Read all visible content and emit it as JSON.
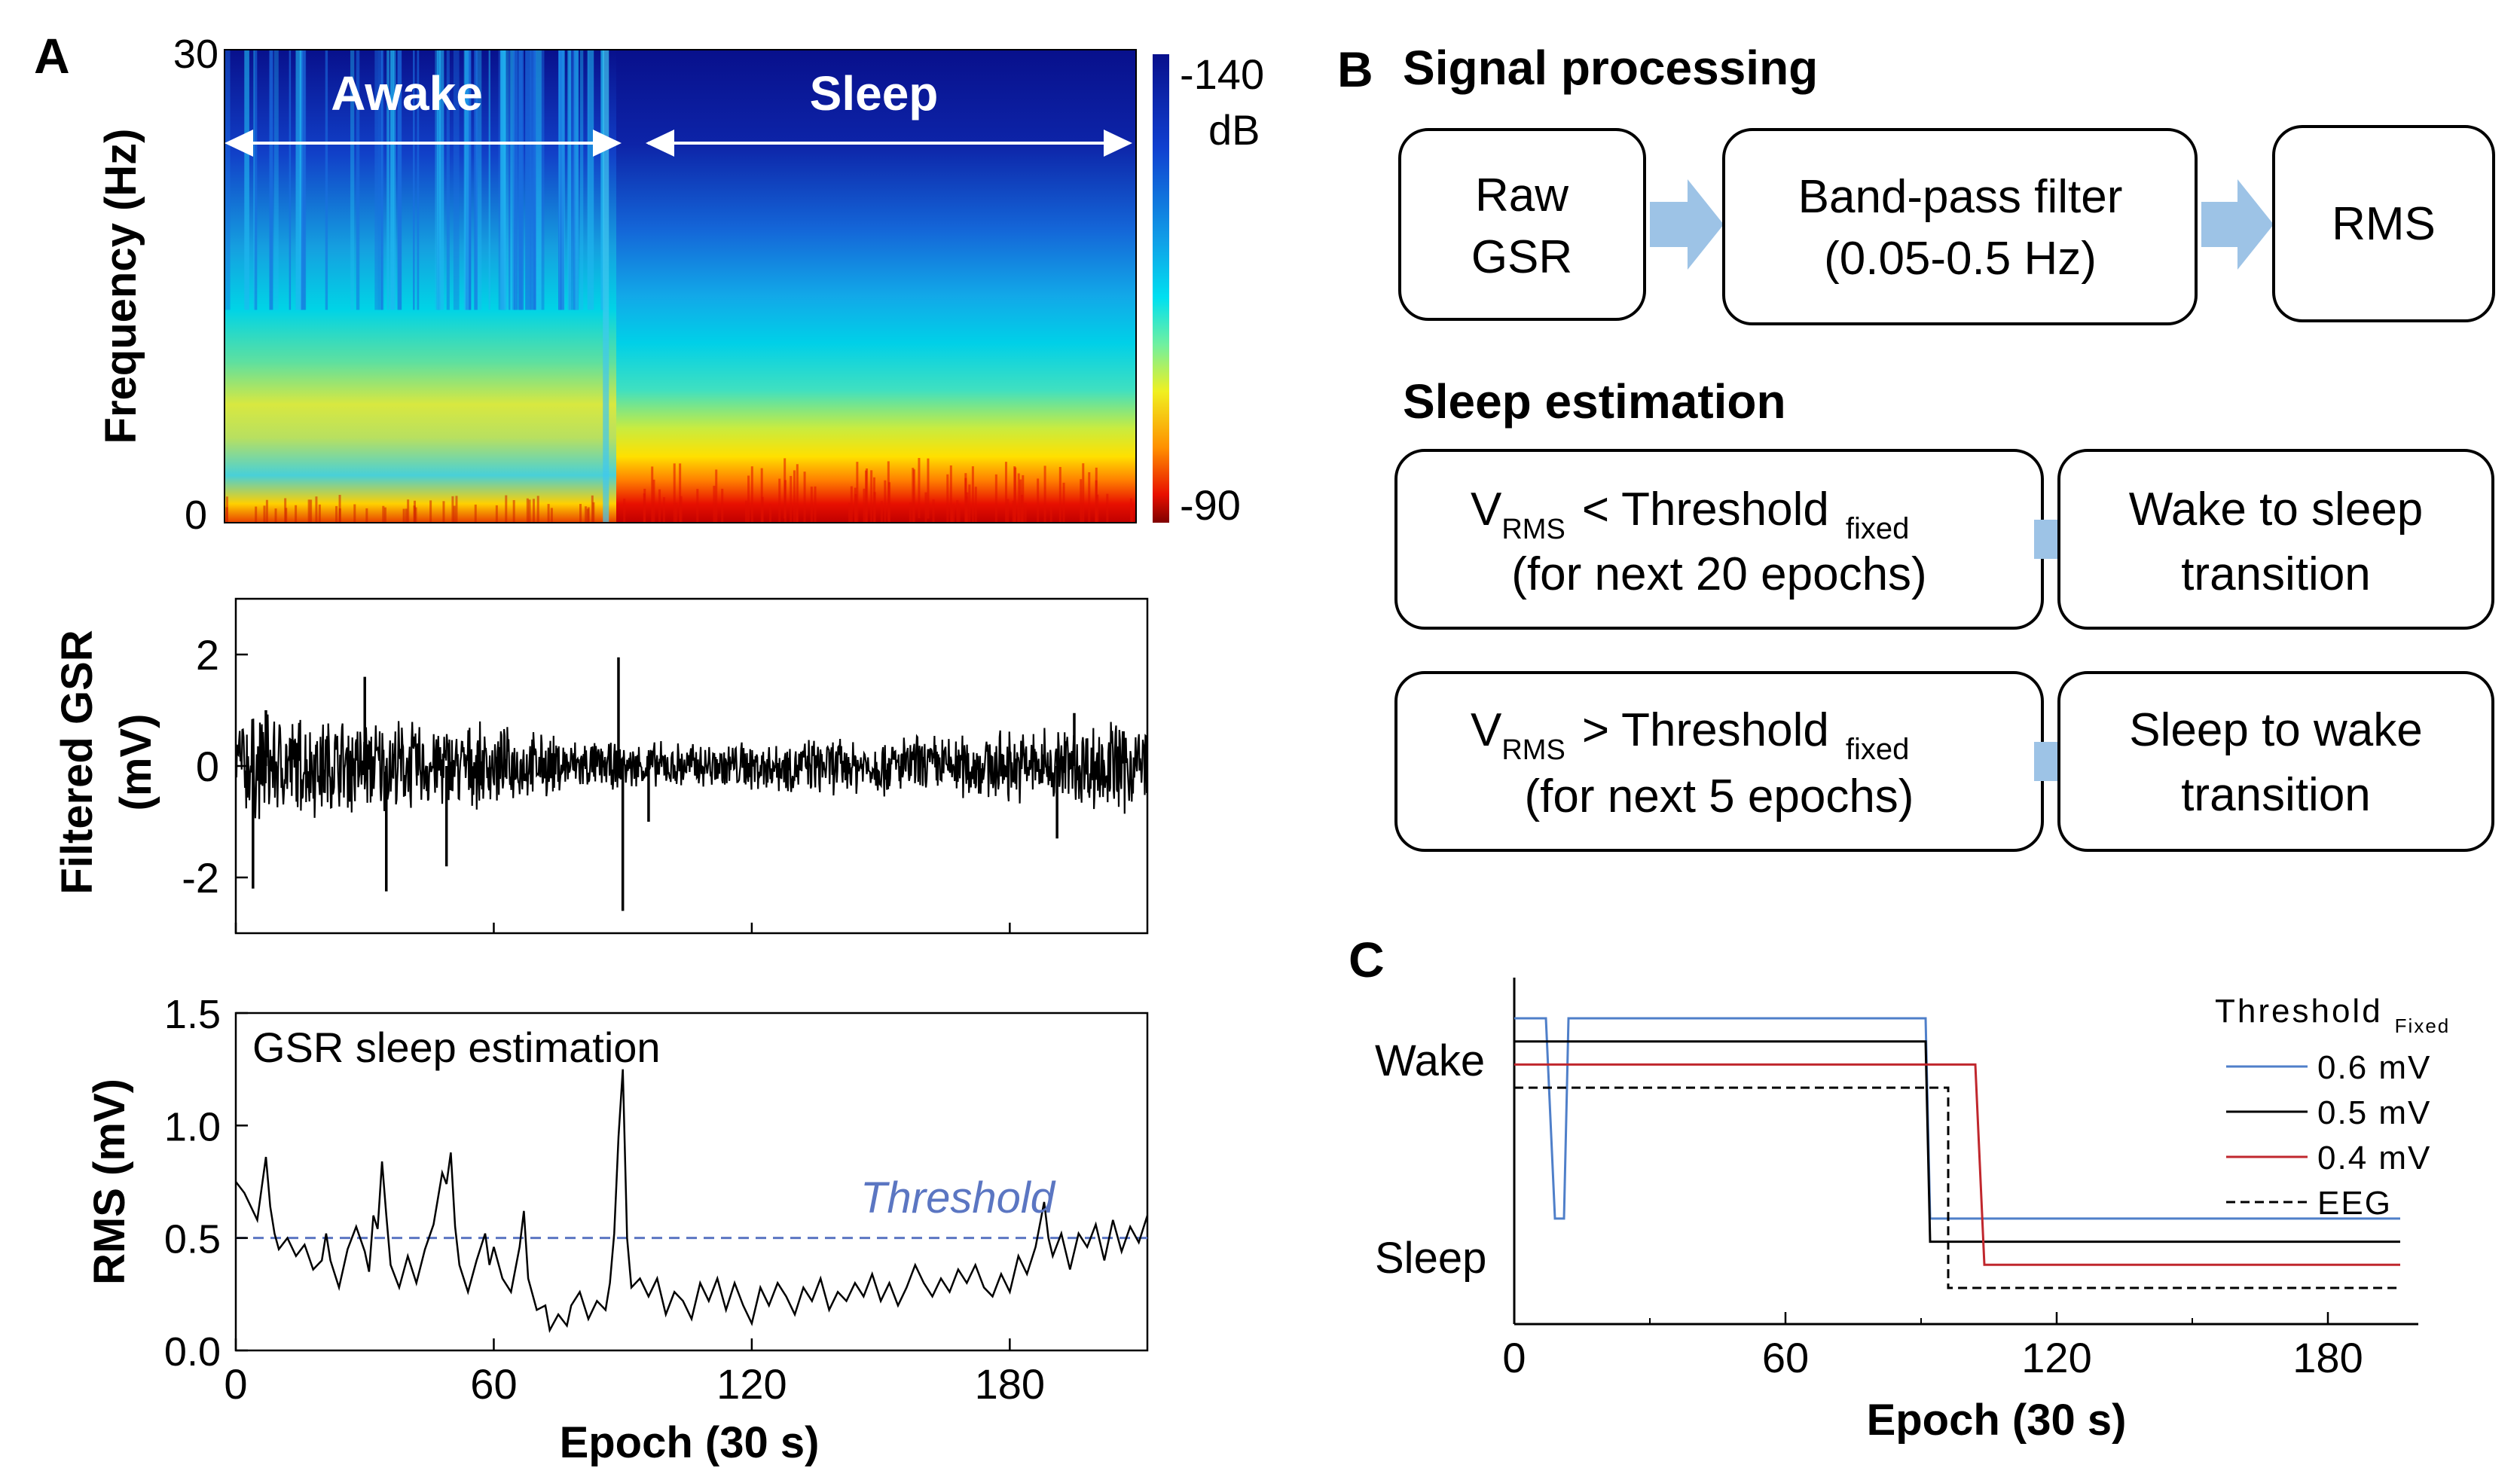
{
  "panel_labels": {
    "a": "A",
    "b": "B",
    "c": "C"
  },
  "chart_data": [
    {
      "type": "heatmap",
      "id": "spectrogram",
      "ylabel": "Frequency (Hz)",
      "y_tick_labels": [
        "30",
        "0"
      ],
      "ylim": [
        0,
        30
      ],
      "xlim": [
        0,
        212
      ],
      "regions": [
        {
          "label": "Awake",
          "x_range": [
            0,
            88
          ]
        },
        {
          "label": "Sleep",
          "x_range": [
            88,
            212
          ]
        }
      ],
      "colorbar": {
        "max_label": "-140",
        "unit": "dB",
        "min_label": "-90"
      },
      "colors": {
        "low": "#08108c",
        "mid": "#00d4e6",
        "high": "#ffe600",
        "peak": "#c80000"
      }
    },
    {
      "type": "line",
      "id": "filtered-gsr",
      "ylabel": "Filtered GSR (mV)",
      "ylabel_lines": [
        "Filtered GSR",
        "(mV)"
      ],
      "ylim": [
        -3,
        3
      ],
      "xlim": [
        0,
        212
      ],
      "y_tick_labels": [
        "2",
        "0",
        "-2"
      ],
      "y_ticks": [
        2,
        0,
        -2
      ],
      "x_ticks": [
        0,
        60,
        120,
        180
      ],
      "envelope": [
        {
          "x": 0,
          "amp": 0.85
        },
        {
          "x": 30,
          "amp": 0.75
        },
        {
          "x": 60,
          "amp": 0.6
        },
        {
          "x": 88,
          "amp": 0.35
        },
        {
          "x": 120,
          "amp": 0.4
        },
        {
          "x": 150,
          "amp": 0.45
        },
        {
          "x": 180,
          "amp": 0.55
        },
        {
          "x": 212,
          "amp": 0.8
        }
      ],
      "spikes": [
        {
          "x": 4,
          "y": -2.2
        },
        {
          "x": 7,
          "y": 1.0
        },
        {
          "x": 30,
          "y": 1.6
        },
        {
          "x": 35,
          "y": -2.25
        },
        {
          "x": 49,
          "y": -1.8
        },
        {
          "x": 89,
          "y": 1.95
        },
        {
          "x": 90,
          "y": -2.6
        },
        {
          "x": 96,
          "y": -1.0
        },
        {
          "x": 191,
          "y": -1.3
        },
        {
          "x": 195,
          "y": 0.95
        }
      ]
    },
    {
      "type": "line",
      "id": "rms",
      "title": "GSR sleep estimation",
      "ylabel": "RMS (mV)",
      "xlabel": "Epoch (30 s)",
      "ylim": [
        0,
        1.5
      ],
      "xlim": [
        0,
        212
      ],
      "y_ticks": [
        0.0,
        0.5,
        1.0,
        1.5
      ],
      "y_tick_labels": [
        "0.0",
        "0.5",
        "1.0",
        "1.5"
      ],
      "x_ticks": [
        0,
        60,
        120,
        180
      ],
      "x_tick_labels": [
        "0",
        "60",
        "120",
        "180"
      ],
      "threshold": {
        "value": 0.5,
        "label": "Threshold",
        "color": "#5b76c2"
      },
      "points": [
        [
          0,
          0.75
        ],
        [
          2,
          0.7
        ],
        [
          4,
          0.62
        ],
        [
          5,
          0.58
        ],
        [
          6,
          0.72
        ],
        [
          7,
          0.86
        ],
        [
          8,
          0.64
        ],
        [
          9,
          0.52
        ],
        [
          10,
          0.45
        ],
        [
          12,
          0.5
        ],
        [
          14,
          0.42
        ],
        [
          16,
          0.47
        ],
        [
          18,
          0.36
        ],
        [
          20,
          0.4
        ],
        [
          21,
          0.52
        ],
        [
          22,
          0.4
        ],
        [
          24,
          0.28
        ],
        [
          26,
          0.45
        ],
        [
          28,
          0.55
        ],
        [
          30,
          0.44
        ],
        [
          31,
          0.35
        ],
        [
          32,
          0.6
        ],
        [
          33,
          0.54
        ],
        [
          34,
          0.84
        ],
        [
          35,
          0.6
        ],
        [
          36,
          0.38
        ],
        [
          38,
          0.28
        ],
        [
          40,
          0.42
        ],
        [
          42,
          0.3
        ],
        [
          44,
          0.45
        ],
        [
          46,
          0.56
        ],
        [
          48,
          0.79
        ],
        [
          49,
          0.74
        ],
        [
          50,
          0.88
        ],
        [
          51,
          0.55
        ],
        [
          52,
          0.38
        ],
        [
          54,
          0.26
        ],
        [
          56,
          0.4
        ],
        [
          58,
          0.52
        ],
        [
          59,
          0.38
        ],
        [
          60,
          0.46
        ],
        [
          62,
          0.32
        ],
        [
          64,
          0.26
        ],
        [
          66,
          0.46
        ],
        [
          67,
          0.62
        ],
        [
          68,
          0.32
        ],
        [
          70,
          0.18
        ],
        [
          72,
          0.2
        ],
        [
          73,
          0.09
        ],
        [
          75,
          0.16
        ],
        [
          77,
          0.11
        ],
        [
          78,
          0.2
        ],
        [
          80,
          0.26
        ],
        [
          82,
          0.14
        ],
        [
          84,
          0.22
        ],
        [
          86,
          0.18
        ],
        [
          87,
          0.3
        ],
        [
          88,
          0.52
        ],
        [
          89,
          0.95
        ],
        [
          90,
          1.25
        ],
        [
          91,
          0.5
        ],
        [
          92,
          0.28
        ],
        [
          94,
          0.32
        ],
        [
          96,
          0.24
        ],
        [
          98,
          0.32
        ],
        [
          100,
          0.16
        ],
        [
          102,
          0.26
        ],
        [
          104,
          0.22
        ],
        [
          106,
          0.14
        ],
        [
          108,
          0.3
        ],
        [
          110,
          0.22
        ],
        [
          112,
          0.32
        ],
        [
          114,
          0.18
        ],
        [
          116,
          0.3
        ],
        [
          118,
          0.2
        ],
        [
          120,
          0.12
        ],
        [
          122,
          0.28
        ],
        [
          124,
          0.2
        ],
        [
          126,
          0.3
        ],
        [
          128,
          0.24
        ],
        [
          130,
          0.16
        ],
        [
          132,
          0.28
        ],
        [
          134,
          0.22
        ],
        [
          136,
          0.32
        ],
        [
          138,
          0.18
        ],
        [
          140,
          0.26
        ],
        [
          142,
          0.22
        ],
        [
          144,
          0.3
        ],
        [
          146,
          0.24
        ],
        [
          148,
          0.34
        ],
        [
          150,
          0.22
        ],
        [
          152,
          0.3
        ],
        [
          154,
          0.2
        ],
        [
          156,
          0.28
        ],
        [
          158,
          0.38
        ],
        [
          160,
          0.3
        ],
        [
          162,
          0.24
        ],
        [
          164,
          0.32
        ],
        [
          166,
          0.26
        ],
        [
          168,
          0.36
        ],
        [
          170,
          0.3
        ],
        [
          172,
          0.38
        ],
        [
          174,
          0.28
        ],
        [
          176,
          0.24
        ],
        [
          178,
          0.34
        ],
        [
          180,
          0.26
        ],
        [
          182,
          0.42
        ],
        [
          184,
          0.34
        ],
        [
          186,
          0.46
        ],
        [
          188,
          0.66
        ],
        [
          189,
          0.5
        ],
        [
          190,
          0.42
        ],
        [
          192,
          0.52
        ],
        [
          194,
          0.36
        ],
        [
          196,
          0.52
        ],
        [
          198,
          0.46
        ],
        [
          200,
          0.56
        ],
        [
          202,
          0.4
        ],
        [
          204,
          0.58
        ],
        [
          206,
          0.44
        ],
        [
          208,
          0.55
        ],
        [
          210,
          0.48
        ],
        [
          212,
          0.6
        ]
      ]
    },
    {
      "type": "line",
      "id": "hypnogram",
      "xlabel": "Epoch (30 s)",
      "xlim": [
        0,
        200
      ],
      "x_ticks": [
        0,
        60,
        120,
        180
      ],
      "x_tick_labels": [
        "0",
        "60",
        "120",
        "180"
      ],
      "y_categories": [
        "Wake",
        "Sleep"
      ],
      "legend_title": "Threshold",
      "legend_subscript": "Fixed",
      "legend_position": "top-right",
      "series": [
        {
          "name": "0.6 mV",
          "color": "#4f7fc9",
          "dash": false,
          "wake_level": 1.45,
          "sleep_level": 0.15,
          "steps": [
            [
              0,
              1.45
            ],
            [
              7,
              1.45
            ],
            [
              9,
              0.15
            ],
            [
              11,
              0.15
            ],
            [
              12,
              1.45
            ],
            [
              91,
              1.45
            ],
            [
              92,
              0.15
            ],
            [
              196,
              0.15
            ]
          ]
        },
        {
          "name": "0.5 mV",
          "color": "#000000",
          "dash": false,
          "wake_level": 1.3,
          "sleep_level": 0.0,
          "steps": [
            [
              0,
              1.3
            ],
            [
              91,
              1.3
            ],
            [
              92,
              0.0
            ],
            [
              196,
              0.0
            ]
          ]
        },
        {
          "name": "0.4 mV",
          "color": "#c0272d",
          "dash": false,
          "wake_level": 1.15,
          "sleep_level": -0.15,
          "steps": [
            [
              0,
              1.15
            ],
            [
              102,
              1.15
            ],
            [
              104,
              -0.15
            ],
            [
              196,
              -0.15
            ]
          ]
        },
        {
          "name": "EEG",
          "color": "#000000",
          "dash": true,
          "wake_level": 1.0,
          "sleep_level": -0.3,
          "steps": [
            [
              0,
              1.0
            ],
            [
              96,
              1.0
            ],
            [
              96,
              -0.3
            ],
            [
              196,
              -0.3
            ]
          ]
        }
      ]
    }
  ],
  "flowchart": {
    "signal_title": "Signal processing",
    "sleep_title": "Sleep estimation",
    "arrow_color": "#9dc3e6",
    "boxes": {
      "raw": {
        "line1": "Raw",
        "line2": "GSR"
      },
      "bandpass": {
        "line1": "Band-pass filter",
        "line2": "(0.05-0.5 Hz)"
      },
      "rms": {
        "line1": "RMS"
      },
      "cond1": {
        "v": "V",
        "v_sub": "RMS",
        "op": "< Threshold",
        "sub": "fixed",
        "line2": "(for next 20 epochs)"
      },
      "res1": {
        "line1": "Wake to sleep",
        "line2": "transition"
      },
      "cond2": {
        "v": "V",
        "v_sub": "RMS",
        "op": "> Threshold",
        "sub": "fixed",
        "line2": "(for next 5 epochs)"
      },
      "res2": {
        "line1": "Sleep to wake",
        "line2": "transition"
      }
    }
  }
}
